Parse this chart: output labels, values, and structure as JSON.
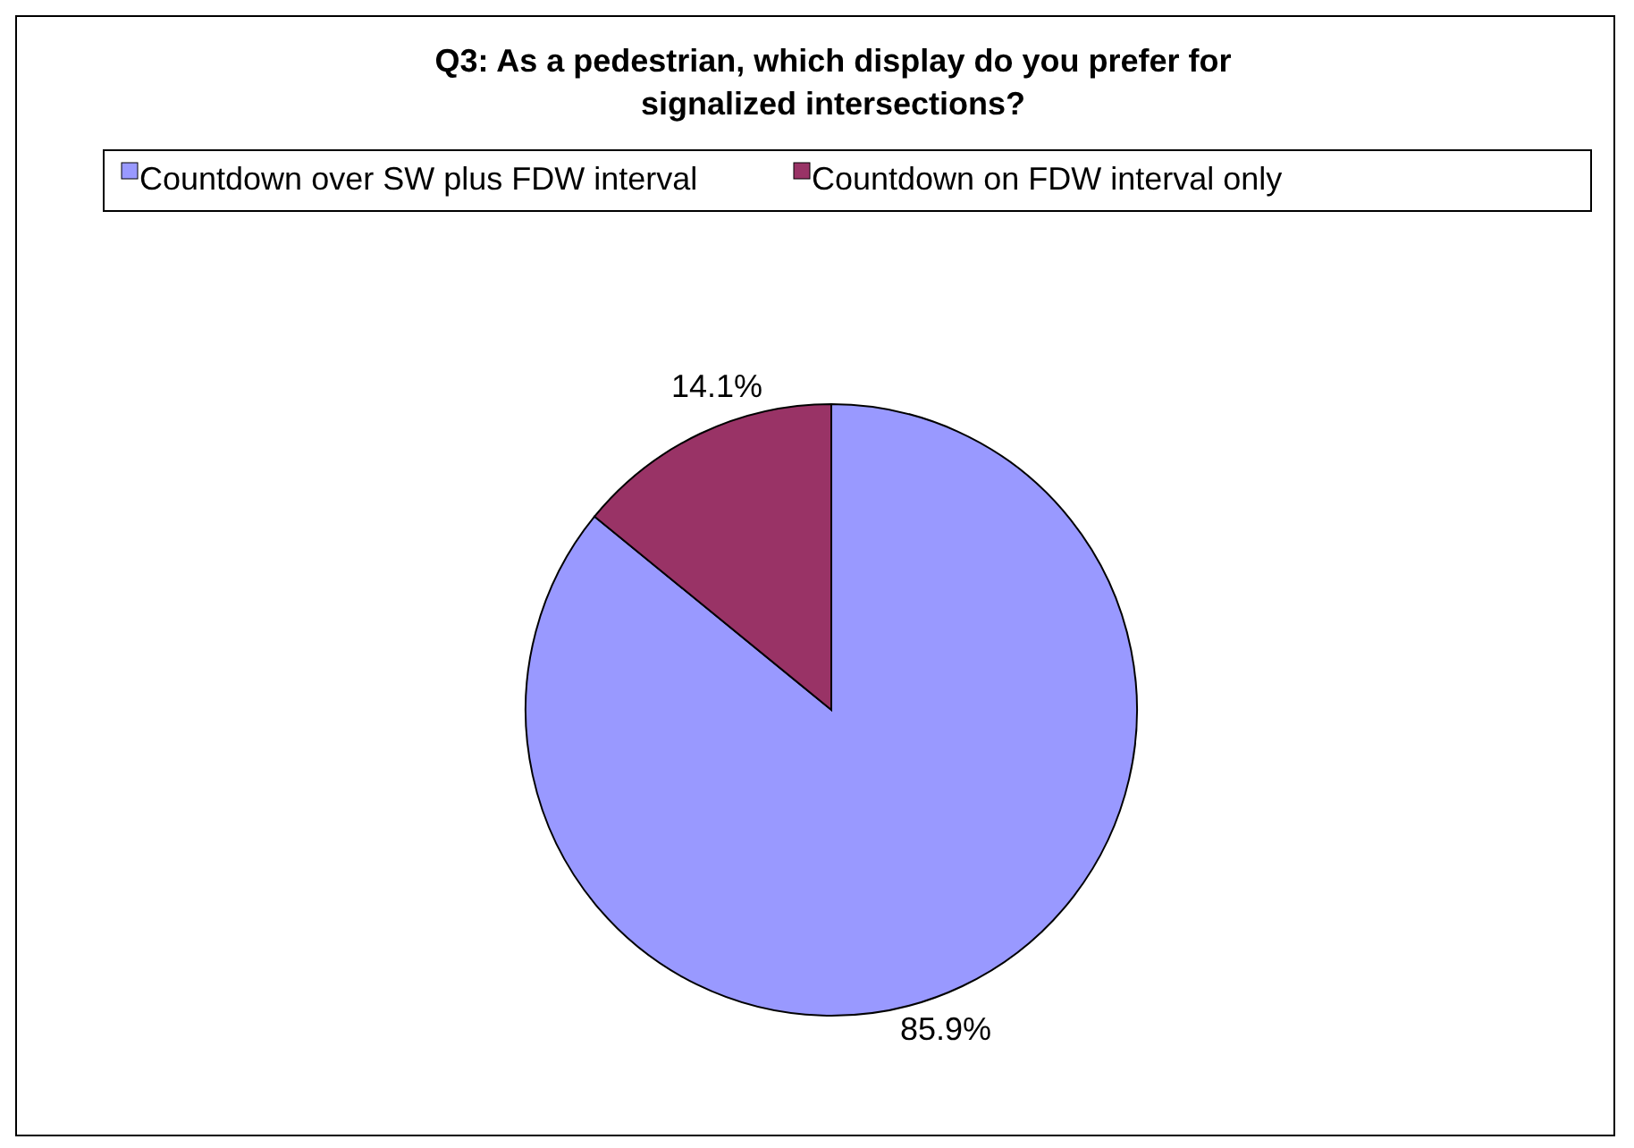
{
  "chart_data": {
    "type": "pie",
    "title": "Q3: As a pedestrian, which display do you prefer for signalized intersections?",
    "categories": [
      "Countdown over SW plus FDW interval",
      "Countdown on FDW interval only"
    ],
    "values": [
      85.9,
      14.1
    ],
    "colors": [
      "#9999ff",
      "#993366"
    ],
    "value_labels": [
      "85.9%",
      "14.1%"
    ],
    "legend": "top"
  }
}
